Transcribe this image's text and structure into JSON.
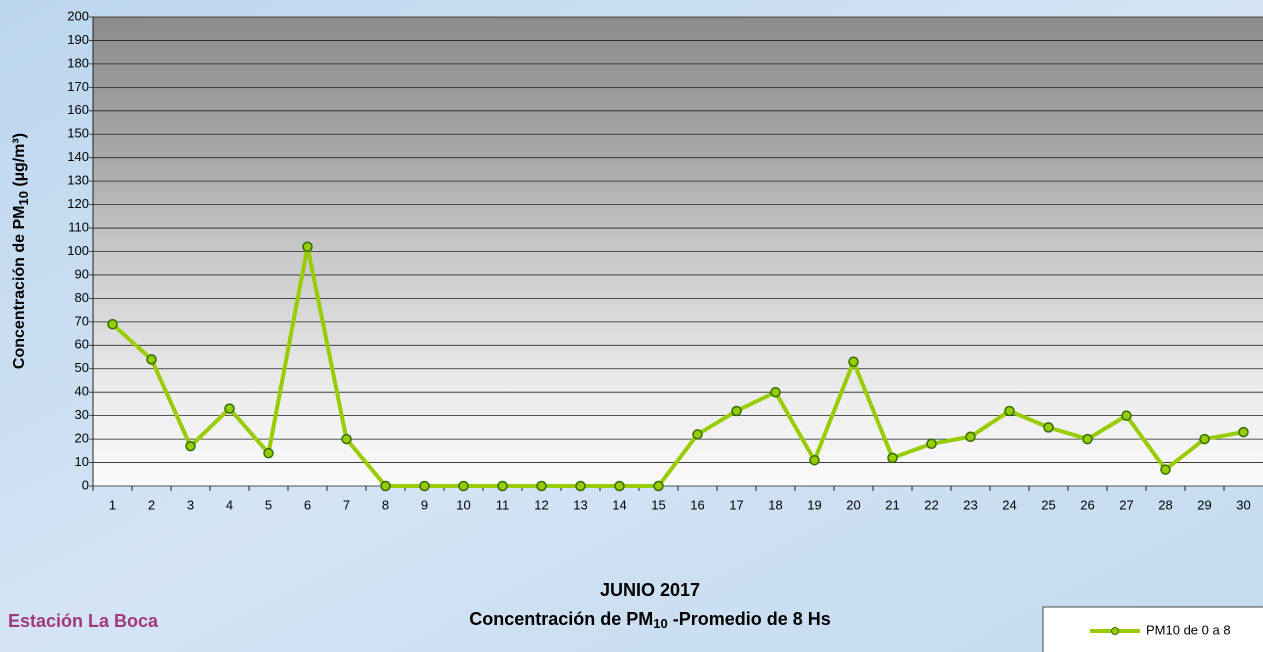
{
  "chart_data": {
    "type": "line",
    "title": "JUNIO 2017",
    "subtitle_parts": [
      "Concentración de PM",
      "10",
      " -Promedio de 8 Hs"
    ],
    "ylabel_parts": [
      "Concentración de PM",
      "10",
      " (µg/m³)"
    ],
    "station": "Estación  La Boca",
    "categories": [
      "1",
      "2",
      "3",
      "4",
      "5",
      "6",
      "7",
      "8",
      "9",
      "10",
      "11",
      "12",
      "13",
      "14",
      "15",
      "16",
      "17",
      "18",
      "19",
      "20",
      "21",
      "22",
      "23",
      "24",
      "25",
      "26",
      "27",
      "28",
      "29",
      "30"
    ],
    "series": [
      {
        "name": "PM10 de 0 a 8",
        "color": "#99cc00",
        "values": [
          69,
          54,
          17,
          33,
          14,
          102,
          20,
          0,
          0,
          0,
          0,
          0,
          0,
          0,
          0,
          22,
          32,
          40,
          11,
          53,
          12,
          18,
          21,
          32,
          25,
          20,
          30,
          7,
          20,
          23
        ]
      }
    ],
    "ylim": [
      0,
      200
    ],
    "yticks": [
      0,
      10,
      20,
      30,
      40,
      50,
      60,
      70,
      80,
      90,
      100,
      110,
      120,
      130,
      140,
      150,
      160,
      170,
      180,
      190,
      200
    ],
    "grid": true
  }
}
